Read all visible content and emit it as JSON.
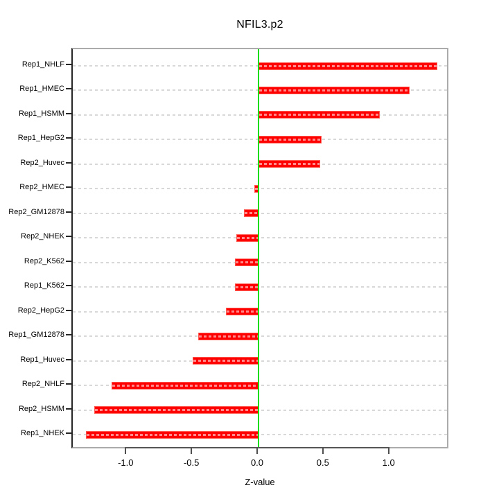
{
  "chart_data": {
    "type": "bar",
    "orientation": "horizontal",
    "title": "NFIL3.p2",
    "xlabel": "Z-value",
    "ylabel": "",
    "categories": [
      "Rep1_NHLF",
      "Rep1_HMEC",
      "Rep1_HSMM",
      "Rep1_HepG2",
      "Rep2_Huvec",
      "Rep2_HMEC",
      "Rep2_GM12878",
      "Rep2_NHEK",
      "Rep2_K562",
      "Rep1_K562",
      "Rep2_HepG2",
      "Rep1_GM12878",
      "Rep1_Huvec",
      "Rep2_NHLF",
      "Rep2_HSMM",
      "Rep1_NHEK"
    ],
    "values": [
      1.36,
      1.15,
      0.92,
      0.48,
      0.47,
      -0.03,
      -0.11,
      -0.17,
      -0.18,
      -0.18,
      -0.25,
      -0.46,
      -0.5,
      -1.12,
      -1.25,
      -1.31
    ],
    "x_tick_labels": [
      "-1.0",
      "-0.5",
      "0.0",
      "0.5",
      "1.0"
    ],
    "x_tick_values": [
      -1.0,
      -0.5,
      0.0,
      0.5,
      1.0
    ],
    "xlim": [
      -1.41,
      1.46
    ],
    "grid": "horizontal-dashed-per-category",
    "zero_line": true,
    "legend": "none",
    "colors": {
      "bar": "#ff0000",
      "bar_edge": "#ff5a52",
      "bar_center_dash": "rgba(255,255,255,0.55)",
      "zero_line": "#00dd00",
      "grid": "#d8d8d8",
      "panel_border": "#ababab",
      "axis_dark": "#555555",
      "text": "#000000",
      "background": "#ffffff"
    }
  }
}
